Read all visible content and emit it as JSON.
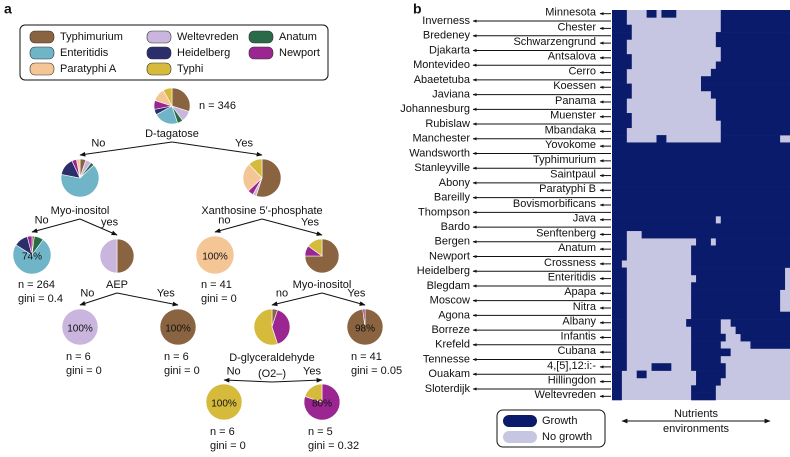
{
  "panel_a": {
    "label": "a",
    "legend": [
      {
        "name": "Typhimurium",
        "color": "#8a6440"
      },
      {
        "name": "Weltevreden",
        "color": "#c9b5dd"
      },
      {
        "name": "Anatum",
        "color": "#2b6a48"
      },
      {
        "name": "Enteritidis",
        "color": "#70b4c8"
      },
      {
        "name": "Heidelberg",
        "color": "#2c2e6c"
      },
      {
        "name": "Newport",
        "color": "#9b2691"
      },
      {
        "name": "Paratyphi A",
        "color": "#f4c595"
      },
      {
        "name": "Typhi",
        "color": "#d6ba3c"
      }
    ],
    "nodes": [
      {
        "label": "D-tagatose",
        "n": "n = 346",
        "pie": [
          30,
          10,
          5,
          22,
          5,
          8,
          12,
          8
        ]
      },
      {
        "label": "Myo-inositol",
        "pie": [
          5,
          5,
          3,
          65,
          15,
          4,
          3,
          0
        ]
      },
      {
        "label": "Xanthosine 5′-phosphate",
        "pie": [
          55,
          3,
          0,
          0,
          0,
          5,
          25,
          12
        ]
      },
      {
        "pct_label": "74%",
        "n": "n = 264",
        "gini": "gini = 0.4",
        "pie": [
          2,
          0,
          8,
          74,
          12,
          4,
          0,
          0
        ]
      },
      {
        "label": "AEP",
        "pie": [
          50,
          50,
          0,
          0,
          0,
          0,
          0,
          0
        ]
      },
      {
        "pct_label": "100%",
        "n": "n = 41",
        "gini": "gini = 0",
        "pie": [
          0,
          0,
          0,
          0,
          0,
          0,
          100,
          0
        ]
      },
      {
        "label": "Myo-inositol",
        "pie": [
          75,
          0,
          0,
          0,
          0,
          10,
          0,
          15
        ]
      },
      {
        "pct_label": "100%",
        "n": "n = 6",
        "gini": "gini = 0",
        "pie": [
          0,
          100,
          0,
          0,
          0,
          0,
          0,
          0
        ]
      },
      {
        "pct_label": "100%",
        "n": "n = 6",
        "gini": "gini = 0",
        "pie": [
          100,
          0,
          0,
          0,
          0,
          0,
          0,
          0
        ]
      },
      {
        "label": "D-glyceraldehyde",
        "label2": "(O2–)",
        "pie": [
          5,
          0,
          0,
          0,
          0,
          40,
          0,
          55
        ]
      },
      {
        "pct_label": "98%",
        "n": "n = 41",
        "gini": "gini = 0.05",
        "pie": [
          98,
          0,
          0,
          0,
          0,
          2,
          0,
          0
        ]
      },
      {
        "pct_label": "100%",
        "n": "n = 6",
        "gini": "gini = 0",
        "pie": [
          0,
          0,
          0,
          0,
          0,
          0,
          0,
          100
        ]
      },
      {
        "pct_label": "80%",
        "n": "n = 5",
        "gini": "gini = 0.32",
        "pie": [
          0,
          0,
          0,
          0,
          0,
          80,
          0,
          20
        ]
      }
    ],
    "edge_labels": [
      "No",
      "Yes",
      "No",
      "yes",
      "no",
      "Yes",
      "No",
      "Yes",
      "no",
      "Yes",
      "No",
      "Yes"
    ]
  },
  "panel_b": {
    "label": "b",
    "growth_color": "#0b1b6c",
    "no_growth_color": "#c6c6e2",
    "legend": [
      "Growth",
      "No growth"
    ],
    "axis_label": [
      "Nutrients",
      "environments"
    ],
    "rows": [
      {
        "name": "Minnesota",
        "growth": [
          [
            0,
            3
          ],
          [
            7,
            2
          ],
          [
            10,
            3
          ],
          [
            22,
            14
          ]
        ]
      },
      {
        "name": "Inverness",
        "growth": [
          [
            0,
            3
          ],
          [
            22,
            14
          ]
        ]
      },
      {
        "name": "Chester",
        "growth": [
          [
            0,
            4
          ],
          [
            22,
            14
          ]
        ]
      },
      {
        "name": "Bredeney",
        "growth": [
          [
            0,
            4
          ],
          [
            21,
            15
          ]
        ]
      },
      {
        "name": "Schwarzengrund",
        "growth": [
          [
            0,
            3
          ],
          [
            21,
            15
          ]
        ]
      },
      {
        "name": "Djakarta",
        "growth": [
          [
            0,
            3
          ],
          [
            22,
            14
          ]
        ]
      },
      {
        "name": "Antsalova",
        "growth": [
          [
            0,
            4
          ],
          [
            22,
            14
          ]
        ]
      },
      {
        "name": "Montevideo",
        "growth": [
          [
            0,
            4
          ],
          [
            21,
            15
          ]
        ]
      },
      {
        "name": "Cerro",
        "growth": [
          [
            0,
            3
          ],
          [
            20,
            16
          ]
        ]
      },
      {
        "name": "Abaetetuba",
        "growth": [
          [
            0,
            3
          ],
          [
            18,
            18
          ]
        ]
      },
      {
        "name": "Koessen",
        "growth": [
          [
            0,
            4
          ],
          [
            18,
            18
          ]
        ]
      },
      {
        "name": "Javiana",
        "growth": [
          [
            0,
            4
          ],
          [
            20,
            16
          ]
        ]
      },
      {
        "name": "Panama",
        "growth": [
          [
            0,
            3
          ],
          [
            21,
            15
          ]
        ]
      },
      {
        "name": "Johannesburg",
        "growth": [
          [
            0,
            3
          ],
          [
            21,
            15
          ]
        ]
      },
      {
        "name": "Muenster",
        "growth": [
          [
            0,
            4
          ],
          [
            21,
            15
          ]
        ]
      },
      {
        "name": "Rubislaw",
        "growth": [
          [
            0,
            4
          ],
          [
            22,
            14
          ]
        ]
      },
      {
        "name": "Mbandaka",
        "growth": [
          [
            0,
            3
          ],
          [
            22,
            14
          ]
        ]
      },
      {
        "name": "Manchester",
        "growth": [
          [
            0,
            3
          ],
          [
            9,
            2
          ],
          [
            22,
            12
          ]
        ]
      },
      {
        "name": "Yovokome",
        "growth": [
          [
            0,
            36
          ]
        ]
      },
      {
        "name": "Wandsworth",
        "growth": [
          [
            0,
            36
          ]
        ]
      },
      {
        "name": "Typhimurium",
        "growth": [
          [
            0,
            36
          ]
        ]
      },
      {
        "name": "Stanleyville",
        "growth": [
          [
            0,
            36
          ]
        ]
      },
      {
        "name": "Saintpaul",
        "growth": [
          [
            0,
            36
          ]
        ]
      },
      {
        "name": "Abony",
        "growth": [
          [
            0,
            36
          ]
        ]
      },
      {
        "name": "Paratyphi B",
        "growth": [
          [
            0,
            36
          ]
        ]
      },
      {
        "name": "Bareilly",
        "growth": [
          [
            0,
            36
          ]
        ]
      },
      {
        "name": "Bovismorbificans",
        "growth": [
          [
            0,
            36
          ]
        ]
      },
      {
        "name": "Thompson",
        "growth": [
          [
            0,
            36
          ]
        ]
      },
      {
        "name": "Java",
        "growth": [
          [
            0,
            21
          ],
          [
            22,
            14
          ]
        ]
      },
      {
        "name": "Bardo",
        "growth": [
          [
            0,
            36
          ]
        ]
      },
      {
        "name": "Senftenberg",
        "growth": [
          [
            0,
            3
          ],
          [
            6,
            30
          ]
        ]
      },
      {
        "name": "Bergen",
        "growth": [
          [
            0,
            3
          ],
          [
            17,
            3
          ],
          [
            21,
            15
          ]
        ]
      },
      {
        "name": "Anatum",
        "growth": [
          [
            0,
            3
          ],
          [
            16,
            20
          ]
        ]
      },
      {
        "name": "Newport",
        "growth": [
          [
            0,
            3
          ],
          [
            16,
            20
          ]
        ]
      },
      {
        "name": "Crossness",
        "growth": [
          [
            0,
            2
          ],
          [
            16,
            20
          ]
        ]
      },
      {
        "name": "Heidelberg",
        "growth": [
          [
            0,
            3
          ],
          [
            16,
            19
          ]
        ]
      },
      {
        "name": "Enteritidis",
        "growth": [
          [
            0,
            3
          ],
          [
            17,
            18
          ]
        ]
      },
      {
        "name": "Blegdam",
        "growth": [
          [
            0,
            3
          ],
          [
            16,
            19
          ]
        ]
      },
      {
        "name": "Apapa",
        "growth": [
          [
            0,
            3
          ],
          [
            16,
            18
          ]
        ]
      },
      {
        "name": "Moscow",
        "growth": [
          [
            0,
            3
          ],
          [
            16,
            18
          ]
        ]
      },
      {
        "name": "Nitra",
        "growth": [
          [
            0,
            3
          ],
          [
            16,
            18
          ]
        ]
      },
      {
        "name": "Agona",
        "growth": [
          [
            0,
            3
          ],
          [
            16,
            20
          ]
        ]
      },
      {
        "name": "Albany",
        "growth": [
          [
            0,
            3
          ],
          [
            15,
            7
          ],
          [
            24,
            12
          ]
        ]
      },
      {
        "name": "Borreze",
        "growth": [
          [
            0,
            3
          ],
          [
            16,
            6
          ],
          [
            25,
            11
          ]
        ]
      },
      {
        "name": "Infantis",
        "growth": [
          [
            0,
            3
          ],
          [
            16,
            7
          ],
          [
            26,
            10
          ]
        ]
      },
      {
        "name": "Krefeld",
        "growth": [
          [
            0,
            3
          ],
          [
            16,
            6
          ],
          [
            28,
            8
          ]
        ]
      },
      {
        "name": "Cubana",
        "growth": [
          [
            0,
            3
          ],
          [
            16,
            8
          ]
        ]
      },
      {
        "name": "Tennesse",
        "growth": [
          [
            0,
            3
          ],
          [
            16,
            6
          ]
        ]
      },
      {
        "name": "4,[5],12:i:-",
        "growth": [
          [
            0,
            3
          ],
          [
            8,
            4
          ],
          [
            16,
            7
          ]
        ]
      },
      {
        "name": "Ouakam",
        "growth": [
          [
            0,
            2
          ],
          [
            5,
            2
          ],
          [
            17,
            6
          ]
        ]
      },
      {
        "name": "Hillingdon",
        "growth": [
          [
            0,
            2
          ],
          [
            17,
            5
          ]
        ]
      },
      {
        "name": "Sloterdijk",
        "growth": [
          [
            0,
            2
          ],
          [
            16,
            5
          ]
        ]
      },
      {
        "name": "Weltevreden",
        "growth": [
          [
            0,
            2
          ],
          [
            16,
            5
          ]
        ]
      }
    ]
  }
}
